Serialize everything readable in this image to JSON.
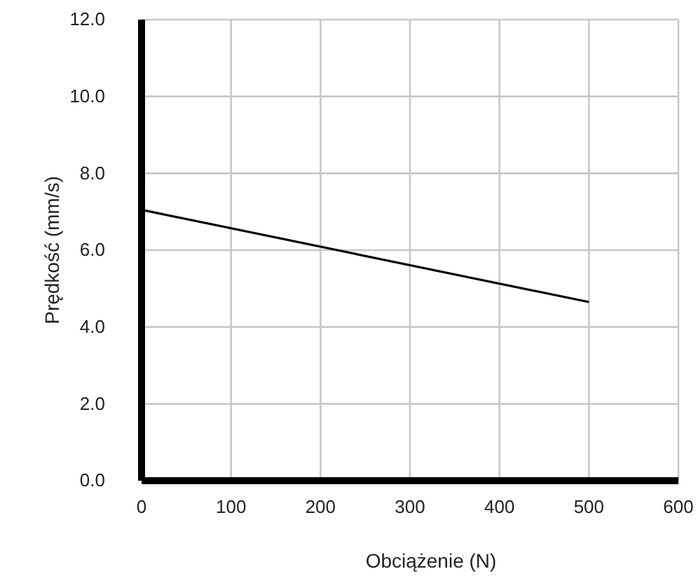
{
  "chart_data": {
    "type": "line",
    "xlabel": "Obciążenie (N)",
    "ylabel": "Prędkość (mm/s)",
    "x": [
      0,
      500
    ],
    "series": [
      {
        "color": "#000000",
        "values": [
          7.05,
          4.65
        ]
      }
    ],
    "xlim": [
      0,
      600
    ],
    "xticks": [
      0,
      100,
      200,
      300,
      400,
      500,
      600
    ],
    "ylim": [
      0,
      12
    ],
    "yticks": [
      {
        "value": 0,
        "label": "0.0"
      },
      {
        "value": 2,
        "label": "2.0"
      },
      {
        "value": 4,
        "label": "4.0"
      },
      {
        "value": 6,
        "label": "6.0"
      },
      {
        "value": 8,
        "label": "8.0"
      },
      {
        "value": 10,
        "label": "10.0"
      },
      {
        "value": 12,
        "label": "12.0"
      }
    ],
    "grid": true,
    "marker": "none",
    "line_style": "solid"
  }
}
